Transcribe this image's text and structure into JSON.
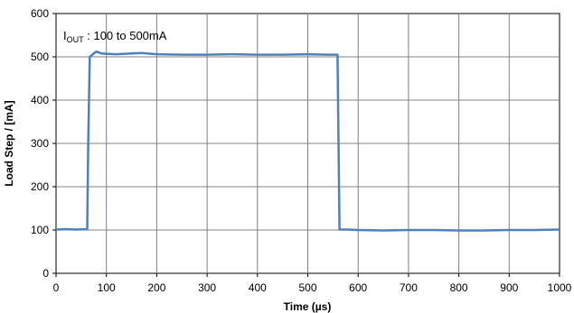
{
  "chart_data": {
    "type": "line",
    "xlabel": "Time (µs)",
    "ylabel": "Load Step / [mA]",
    "xlim": [
      0,
      1000
    ],
    "ylim": [
      0,
      600
    ],
    "x_ticks": [
      "0",
      "100",
      "200",
      "300",
      "400",
      "500",
      "600",
      "700",
      "800",
      "900",
      "1000"
    ],
    "y_ticks": [
      "0",
      "100",
      "200",
      "300",
      "400",
      "500",
      "600"
    ],
    "grid": true,
    "annotation": {
      "main": "I",
      "subscript": "OUT",
      "text": " :  100 to 500mA"
    },
    "line_color": "#4f81bd",
    "series": [
      {
        "x": [
          0,
          20,
          40,
          62,
          64,
          67,
          70,
          75,
          80,
          90,
          100,
          120,
          150,
          170,
          200,
          250,
          300,
          350,
          400,
          450,
          500,
          540,
          559,
          561,
          563,
          580,
          600,
          650,
          700,
          750,
          800,
          850,
          900,
          950,
          1000
        ],
        "y": [
          101,
          102,
          101,
          102,
          300,
          500,
          503,
          508,
          512,
          508,
          507,
          506,
          508,
          509,
          506,
          505,
          505,
          506,
          505,
          505,
          506,
          505,
          505,
          300,
          101,
          101,
          100,
          99,
          100,
          100,
          99,
          99,
          100,
          100,
          101
        ]
      }
    ]
  }
}
